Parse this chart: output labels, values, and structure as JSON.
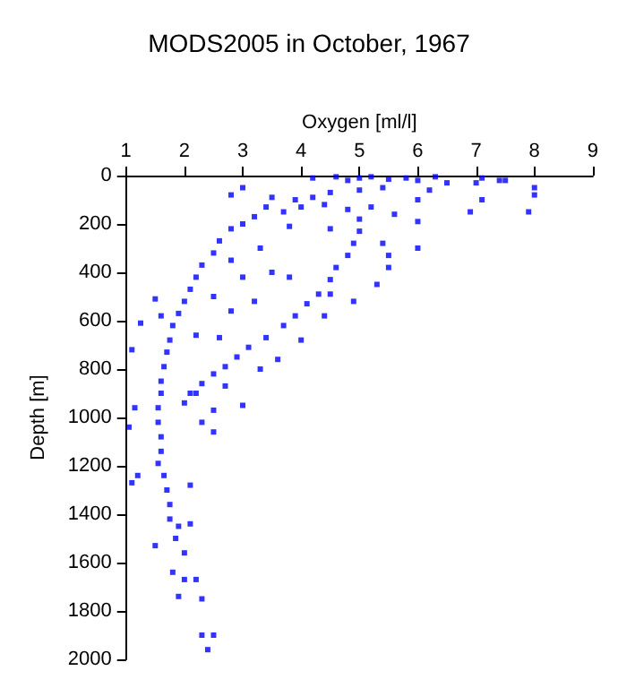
{
  "chart_data": {
    "type": "scatter",
    "title": "MODS2005 in October, 1967",
    "xlabel": "Oxygen [ml/l]",
    "ylabel": "Depth [m]",
    "xlim": [
      1,
      9
    ],
    "xticks": [
      1,
      2,
      3,
      4,
      5,
      6,
      7,
      8,
      9
    ],
    "ylim": [
      2000,
      0
    ],
    "yticks": [
      0,
      200,
      400,
      600,
      800,
      1000,
      1200,
      1400,
      1600,
      1800,
      2000
    ],
    "grid": false,
    "marker": "square",
    "series": [
      {
        "color": "#0000ff",
        "x": [
          4.2,
          4.6,
          4.8,
          5.0,
          5.2,
          5.5,
          5.8,
          6.0,
          6.3,
          6.5,
          7.0,
          7.1,
          7.4,
          7.5,
          6.2,
          5.4,
          5.0,
          4.5,
          4.2,
          3.9,
          3.5,
          3.0,
          2.8,
          8.0,
          8.0,
          7.9,
          7.1,
          6.9,
          6.0,
          3.4,
          3.7,
          4.0,
          4.4,
          4.8,
          5.2,
          5.6,
          6.0,
          3.2,
          3.0,
          5.0,
          6.0,
          4.5,
          3.8,
          2.8,
          2.6,
          2.5,
          2.3,
          2.2,
          2.1,
          2.0,
          1.9,
          1.8,
          1.75,
          1.7,
          1.65,
          1.6,
          1.6,
          1.55,
          1.55,
          1.6,
          1.6,
          1.55,
          1.65,
          1.7,
          1.75,
          1.75,
          1.9,
          1.85,
          2.0,
          1.8,
          2.0,
          2.2,
          1.9,
          2.3,
          2.3,
          2.5,
          2.4,
          1.5,
          2.1,
          1.1,
          1.2,
          1.05,
          1.15,
          1.1,
          1.25,
          1.5,
          1.6,
          2.1,
          2.5,
          3.0,
          2.3,
          2.2,
          2.8,
          3.0,
          2.5,
          2.8,
          2.2,
          2.6,
          3.2,
          3.5,
          3.8,
          3.3,
          5.0,
          4.9,
          4.8,
          4.6,
          4.5,
          4.3,
          4.1,
          3.9,
          3.7,
          3.4,
          3.1,
          2.9,
          2.7,
          2.5,
          2.3,
          2.1,
          2.0,
          5.4,
          5.5,
          5.5,
          5.3,
          4.9,
          4.4,
          4.0,
          3.6,
          3.3,
          2.7,
          2.5,
          4.5
        ],
        "values": [
          10,
          5,
          20,
          10,
          5,
          15,
          10,
          20,
          5,
          30,
          30,
          10,
          20,
          20,
          60,
          50,
          60,
          70,
          90,
          100,
          90,
          50,
          80,
          50,
          80,
          150,
          100,
          150,
          100,
          130,
          150,
          130,
          120,
          140,
          130,
          160,
          190,
          170,
          200,
          180,
          300,
          220,
          210,
          220,
          270,
          320,
          370,
          420,
          470,
          520,
          570,
          620,
          680,
          730,
          790,
          850,
          900,
          960,
          1020,
          1080,
          1140,
          1190,
          1240,
          1300,
          1360,
          1420,
          1450,
          1500,
          1560,
          1640,
          1670,
          1670,
          1740,
          1750,
          1900,
          1900,
          1960,
          1530,
          1440,
          1270,
          1240,
          1040,
          960,
          720,
          610,
          510,
          580,
          1280,
          1060,
          950,
          1020,
          900,
          350,
          420,
          500,
          560,
          660,
          670,
          520,
          400,
          420,
          300,
          230,
          280,
          330,
          380,
          430,
          490,
          530,
          580,
          620,
          670,
          710,
          750,
          790,
          820,
          860,
          900,
          940,
          280,
          330,
          380,
          450,
          520,
          580,
          680,
          760,
          800,
          870,
          970,
          490
        ]
      }
    ]
  }
}
